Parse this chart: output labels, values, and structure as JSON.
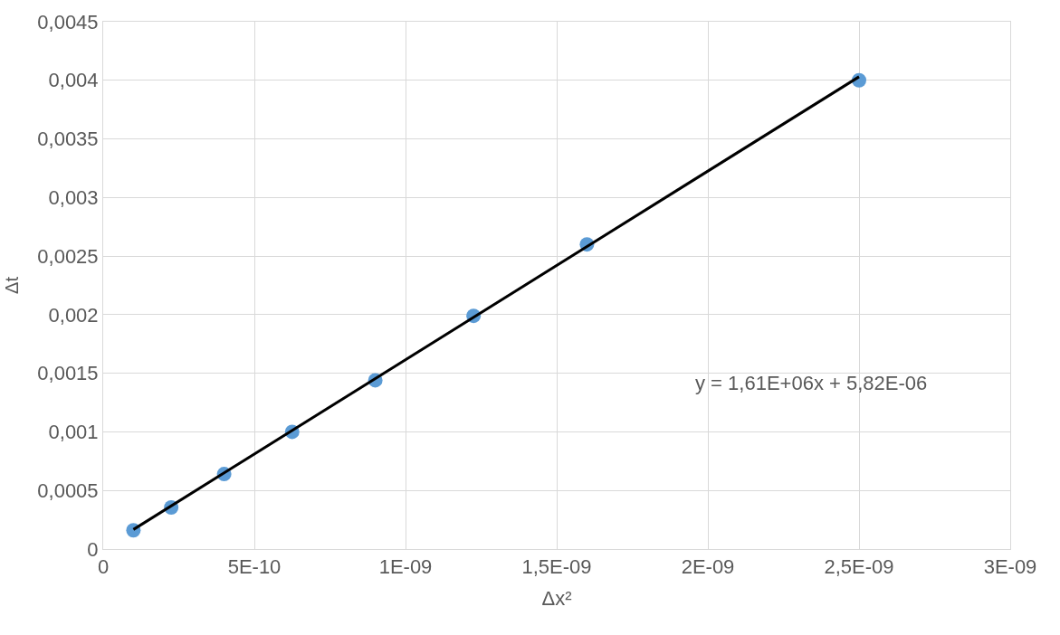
{
  "chart_data": {
    "type": "scatter",
    "xlabel": "Δx²",
    "ylabel": "Δt",
    "x": [
      1e-10,
      2.25e-10,
      4e-10,
      6.25e-10,
      9e-10,
      1.225e-09,
      1.6e-09,
      2.5e-09
    ],
    "series": [
      {
        "color": "#5b9bd5",
        "marker": "circle",
        "values": [
          0.00016,
          0.000355,
          0.00064,
          0.001,
          0.00144,
          0.00199,
          0.0026,
          0.004
        ]
      },
      {
        "type": "line",
        "color": "#000000",
        "marker": "none",
        "line_style": "solid",
        "x": [
          1e-10,
          2.5e-09
        ],
        "values": [
          0.000167,
          0.00403
        ]
      }
    ],
    "xlim": [
      0,
      3e-09
    ],
    "xticks": [
      0,
      {
        "value": 5e-10,
        "label": "5E-10"
      },
      {
        "value": 1e-09,
        "label": "1E-09"
      },
      {
        "value": 1.5e-09,
        "label": "1,5E-09"
      },
      {
        "value": 2e-09,
        "label": "2E-09"
      },
      {
        "value": 2.5e-09,
        "label": "2,5E-09"
      },
      {
        "value": 3e-09,
        "label": "3E-09"
      }
    ],
    "ylim": [
      0,
      0.0045
    ],
    "yticks": [
      0,
      {
        "value": 0.0005,
        "label": "0,0005"
      },
      {
        "value": 0.001,
        "label": "0,001"
      },
      {
        "value": 0.0015,
        "label": "0,0015"
      },
      {
        "value": 0.002,
        "label": "0,002"
      },
      {
        "value": 0.0025,
        "label": "0,0025"
      },
      {
        "value": 0.003,
        "label": "0,003"
      },
      {
        "value": 0.0035,
        "label": "0,0035"
      },
      {
        "value": 0.004,
        "label": "0,004"
      },
      {
        "value": 0.0045,
        "label": "0,0045"
      }
    ],
    "grid": true,
    "annotations": [
      "y = 1,61E+06x + 5,82E-06"
    ]
  }
}
